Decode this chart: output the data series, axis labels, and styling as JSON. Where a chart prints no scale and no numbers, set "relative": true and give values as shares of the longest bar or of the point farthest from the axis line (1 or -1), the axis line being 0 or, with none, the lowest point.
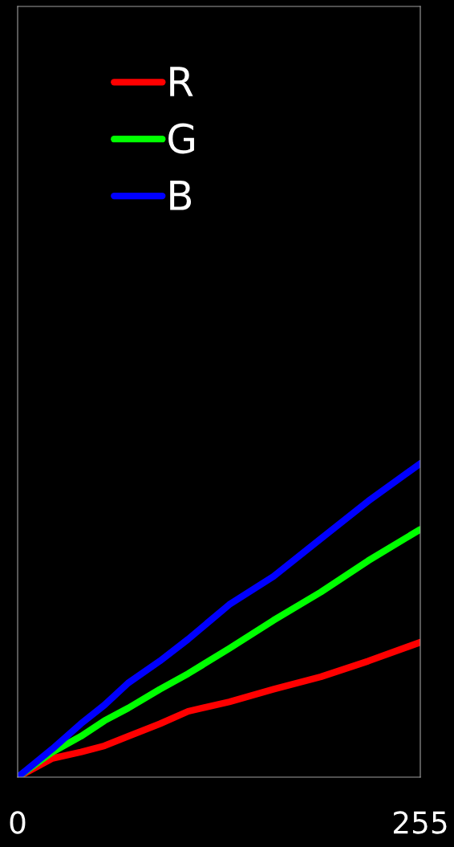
{
  "chart_data": {
    "type": "line",
    "relative": true,
    "x": [
      0,
      22,
      40,
      55,
      70,
      90,
      108,
      134,
      162,
      192,
      222,
      255
    ],
    "xlim": [
      0,
      255
    ],
    "xticks": [
      0,
      255
    ],
    "series": [
      {
        "name": "R",
        "color": "#ff0000",
        "values": [
          0,
          0.06,
          0.08,
          0.1,
          0.13,
          0.17,
          0.21,
          0.24,
          0.28,
          0.32,
          0.37,
          0.43
        ]
      },
      {
        "name": "G",
        "color": "#00ff00",
        "values": [
          0,
          0.08,
          0.13,
          0.18,
          0.22,
          0.28,
          0.33,
          0.41,
          0.5,
          0.59,
          0.69,
          0.79
        ]
      },
      {
        "name": "B",
        "color": "#0000ff",
        "values": [
          0,
          0.09,
          0.17,
          0.23,
          0.3,
          0.37,
          0.44,
          0.55,
          0.64,
          0.76,
          0.88,
          1
        ]
      }
    ],
    "legend": "top left",
    "grid": false
  }
}
